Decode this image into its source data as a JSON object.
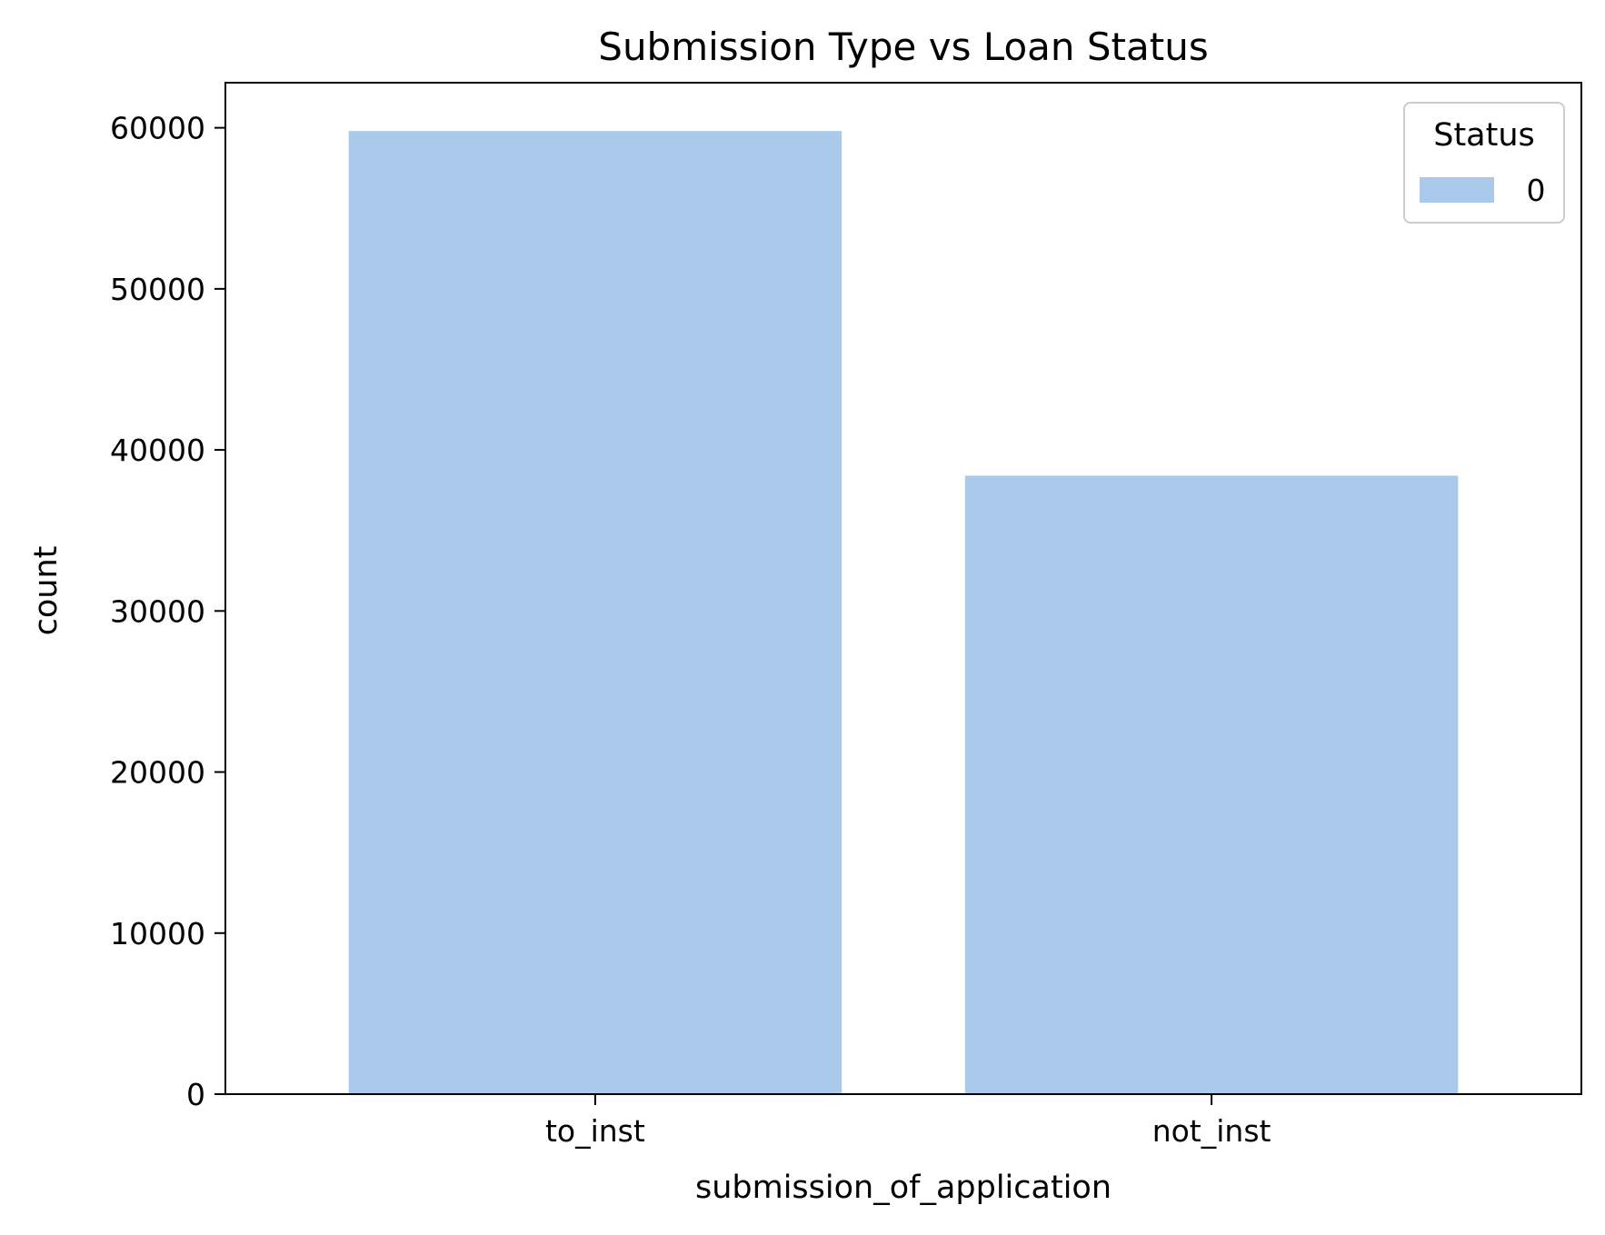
{
  "chart_data": {
    "type": "bar",
    "title": "Submission Type vs Loan Status",
    "xlabel": "submission_of_application",
    "ylabel": "count",
    "categories": [
      "to_inst",
      "not_inst"
    ],
    "series": [
      {
        "name": "0",
        "values": [
          59800,
          38400
        ],
        "color": "#abc9eb"
      }
    ],
    "ylim": [
      0,
      62800
    ],
    "yticks": [
      0,
      10000,
      20000,
      30000,
      40000,
      50000,
      60000
    ],
    "ytick_labels": [
      "0",
      "10000",
      "20000",
      "30000",
      "40000",
      "50000",
      "60000"
    ],
    "legend": {
      "title": "Status",
      "placement": "top-right"
    },
    "grid": false
  }
}
